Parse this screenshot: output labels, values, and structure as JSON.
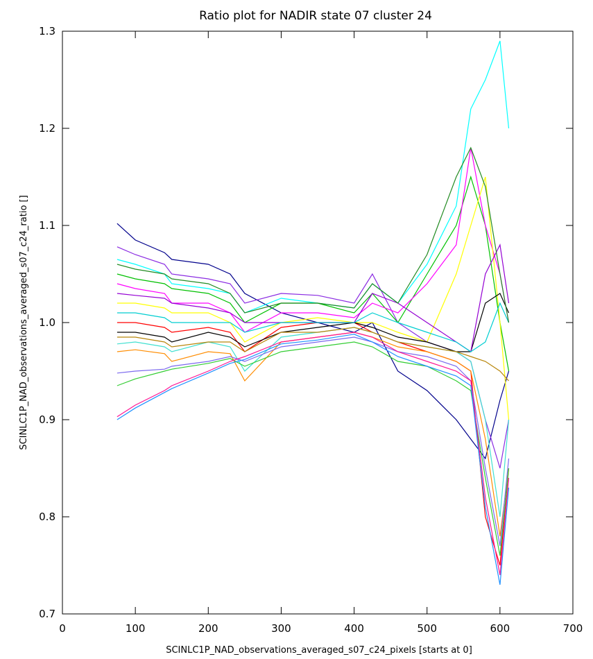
{
  "chart_data": {
    "type": "line",
    "title": "Ratio plot for NADIR state 07 cluster 24",
    "xlabel": "SCINLC1P_NAD_observations_averaged_s07_c24_pixels [starts at 0]",
    "ylabel": "SCINLC1P_NAD_observations_averaged_s07_c24_ratio []",
    "xlim": [
      0,
      700
    ],
    "ylim": [
      0.7,
      1.3
    ],
    "x_ticks": [
      "0",
      "100",
      "200",
      "300",
      "400",
      "500",
      "600",
      "700"
    ],
    "y_ticks": [
      "0.7",
      "0.8",
      "0.9",
      "1.0",
      "1.1",
      "1.2",
      "1.3"
    ],
    "grid": false,
    "x_range_of_data": [
      75,
      612
    ],
    "colors": [
      "#00008b",
      "#8a2be2",
      "#00ffff",
      "#00c000",
      "#ff00ff",
      "#ffff00",
      "#ff0000",
      "#000000",
      "#40e0d0",
      "#ff8c00",
      "#7b68ee",
      "#32cd32",
      "#ff1493",
      "#1e90ff",
      "#9400d3",
      "#00ced1",
      "#b8860b",
      "#228b22"
    ],
    "series": [
      {
        "x": [
          75,
          100,
          140,
          150,
          200,
          230,
          250,
          300,
          350,
          400,
          425,
          460,
          500,
          540,
          560,
          580,
          600,
          612
        ],
        "values": [
          1.102,
          1.085,
          1.072,
          1.065,
          1.06,
          1.05,
          1.03,
          1.01,
          1.0,
          0.99,
          1.0,
          0.95,
          0.93,
          0.9,
          0.88,
          0.86,
          0.92,
          0.95
        ]
      },
      {
        "x": [
          75,
          100,
          140,
          150,
          200,
          230,
          250,
          300,
          350,
          400,
          425,
          460,
          500,
          540,
          560,
          580,
          600,
          612
        ],
        "values": [
          1.078,
          1.07,
          1.06,
          1.05,
          1.045,
          1.04,
          1.02,
          1.03,
          1.028,
          1.02,
          1.05,
          1.0,
          0.98,
          0.97,
          0.96,
          0.9,
          0.85,
          0.9
        ]
      },
      {
        "x": [
          75,
          100,
          140,
          150,
          200,
          230,
          250,
          300,
          350,
          400,
          425,
          460,
          500,
          540,
          560,
          580,
          600,
          612
        ],
        "values": [
          1.065,
          1.06,
          1.05,
          1.04,
          1.035,
          1.03,
          1.01,
          1.025,
          1.02,
          1.015,
          1.04,
          1.02,
          1.06,
          1.12,
          1.22,
          1.25,
          1.29,
          1.2
        ]
      },
      {
        "x": [
          75,
          100,
          140,
          150,
          200,
          230,
          250,
          300,
          350,
          400,
          425,
          460,
          500,
          540,
          560,
          580,
          600,
          612
        ],
        "values": [
          1.05,
          1.045,
          1.04,
          1.035,
          1.03,
          1.02,
          1.0,
          1.02,
          1.02,
          1.01,
          1.03,
          1.0,
          1.05,
          1.1,
          1.15,
          1.1,
          1.0,
          0.95
        ]
      },
      {
        "x": [
          75,
          100,
          140,
          150,
          200,
          230,
          250,
          300,
          350,
          400,
          425,
          460,
          500,
          540,
          560,
          580,
          600,
          612
        ],
        "values": [
          1.04,
          1.035,
          1.03,
          1.02,
          1.02,
          1.01,
          0.99,
          1.01,
          1.01,
          1.005,
          1.02,
          1.01,
          1.04,
          1.08,
          1.18,
          1.1,
          1.05,
          1.0
        ]
      },
      {
        "x": [
          75,
          100,
          140,
          150,
          200,
          230,
          250,
          300,
          350,
          400,
          425,
          460,
          500,
          540,
          560,
          580,
          600,
          612
        ],
        "values": [
          1.02,
          1.02,
          1.015,
          1.01,
          1.01,
          1.0,
          0.98,
          1.0,
          1.005,
          1.0,
          1.0,
          0.99,
          0.98,
          1.05,
          1.1,
          1.15,
          1.0,
          0.9
        ]
      },
      {
        "x": [
          75,
          100,
          140,
          150,
          200,
          230,
          250,
          300,
          350,
          400,
          425,
          460,
          500,
          540,
          560,
          580,
          600,
          612
        ],
        "values": [
          1.0,
          1.0,
          0.995,
          0.99,
          0.995,
          0.99,
          0.97,
          0.995,
          1.0,
          1.0,
          0.99,
          0.98,
          0.97,
          0.96,
          0.95,
          0.8,
          0.75,
          0.85
        ]
      },
      {
        "x": [
          75,
          100,
          140,
          150,
          200,
          230,
          250,
          300,
          350,
          400,
          425,
          460,
          500,
          540,
          560,
          580,
          600,
          612
        ],
        "values": [
          0.99,
          0.99,
          0.985,
          0.98,
          0.99,
          0.985,
          0.975,
          0.99,
          0.995,
          1.0,
          0.995,
          0.985,
          0.98,
          0.97,
          0.97,
          1.02,
          1.03,
          1.01
        ]
      },
      {
        "x": [
          75,
          100,
          140,
          150,
          200,
          230,
          250,
          300,
          350,
          400,
          425,
          460,
          500,
          540,
          560,
          580,
          600,
          612
        ],
        "values": [
          0.978,
          0.98,
          0.975,
          0.97,
          0.98,
          0.975,
          0.95,
          0.985,
          0.99,
          0.995,
          0.99,
          0.98,
          0.975,
          0.97,
          0.96,
          0.9,
          0.8,
          0.9
        ]
      },
      {
        "x": [
          75,
          100,
          140,
          150,
          200,
          230,
          250,
          300,
          350,
          400,
          425,
          460,
          500,
          540,
          560,
          580,
          600,
          612
        ],
        "values": [
          0.97,
          0.972,
          0.968,
          0.96,
          0.97,
          0.968,
          0.94,
          0.98,
          0.985,
          0.99,
          0.985,
          0.975,
          0.97,
          0.96,
          0.95,
          0.88,
          0.78,
          0.85
        ]
      },
      {
        "x": [
          75,
          100,
          140,
          150,
          200,
          230,
          250,
          300,
          350,
          400,
          425,
          460,
          500,
          540,
          560,
          580,
          600,
          612
        ],
        "values": [
          0.948,
          0.95,
          0.952,
          0.955,
          0.96,
          0.965,
          0.96,
          0.975,
          0.98,
          0.985,
          0.98,
          0.97,
          0.965,
          0.955,
          0.94,
          0.85,
          0.77,
          0.86
        ]
      },
      {
        "x": [
          75,
          100,
          140,
          150,
          200,
          230,
          250,
          300,
          350,
          400,
          425,
          460,
          500,
          540,
          560,
          580,
          600,
          612
        ],
        "values": [
          0.935,
          0.942,
          0.95,
          0.952,
          0.958,
          0.963,
          0.955,
          0.97,
          0.975,
          0.98,
          0.975,
          0.96,
          0.955,
          0.94,
          0.93,
          0.84,
          0.76,
          0.85
        ]
      },
      {
        "x": [
          75,
          100,
          140,
          150,
          200,
          230,
          250,
          300,
          350,
          400,
          425,
          460,
          500,
          540,
          560,
          580,
          600,
          612
        ],
        "values": [
          0.903,
          0.915,
          0.93,
          0.935,
          0.95,
          0.96,
          0.965,
          0.98,
          0.985,
          0.99,
          0.985,
          0.97,
          0.96,
          0.95,
          0.94,
          0.82,
          0.74,
          0.84
        ]
      },
      {
        "x": [
          75,
          100,
          140,
          150,
          200,
          230,
          250,
          300,
          350,
          400,
          425,
          460,
          500,
          540,
          560,
          580,
          600,
          612
        ],
        "values": [
          0.9,
          0.912,
          0.928,
          0.932,
          0.948,
          0.958,
          0.962,
          0.978,
          0.982,
          0.988,
          0.98,
          0.965,
          0.955,
          0.945,
          0.935,
          0.81,
          0.73,
          0.83
        ]
      },
      {
        "x": [
          75,
          100,
          140,
          150,
          200,
          230,
          250,
          300,
          350,
          400,
          425,
          460,
          500,
          540,
          560,
          580,
          600,
          612
        ],
        "values": [
          1.03,
          1.028,
          1.025,
          1.02,
          1.015,
          1.01,
          1.0,
          1.0,
          1.0,
          1.0,
          1.03,
          1.02,
          1.0,
          0.98,
          0.97,
          1.05,
          1.08,
          1.02
        ]
      },
      {
        "x": [
          75,
          100,
          140,
          150,
          200,
          230,
          250,
          300,
          350,
          400,
          425,
          460,
          500,
          540,
          560,
          580,
          600,
          612
        ],
        "values": [
          1.01,
          1.01,
          1.005,
          1.0,
          1.0,
          1.0,
          0.99,
          1.0,
          1.0,
          1.0,
          1.01,
          1.0,
          0.99,
          0.98,
          0.97,
          0.98,
          1.02,
          1.0
        ]
      },
      {
        "x": [
          75,
          100,
          140,
          150,
          200,
          230,
          250,
          300,
          350,
          400,
          425,
          460,
          500,
          540,
          560,
          580,
          600,
          612
        ],
        "values": [
          0.985,
          0.985,
          0.98,
          0.975,
          0.98,
          0.98,
          0.97,
          0.99,
          0.99,
          0.995,
          0.99,
          0.98,
          0.975,
          0.97,
          0.965,
          0.96,
          0.95,
          0.94
        ]
      },
      {
        "x": [
          75,
          100,
          140,
          150,
          200,
          230,
          250,
          300,
          350,
          400,
          425,
          460,
          500,
          540,
          560,
          580,
          600,
          612
        ],
        "values": [
          1.06,
          1.055,
          1.05,
          1.045,
          1.04,
          1.03,
          1.01,
          1.02,
          1.02,
          1.015,
          1.04,
          1.02,
          1.07,
          1.15,
          1.18,
          1.14,
          1.05,
          1.0
        ]
      }
    ]
  }
}
